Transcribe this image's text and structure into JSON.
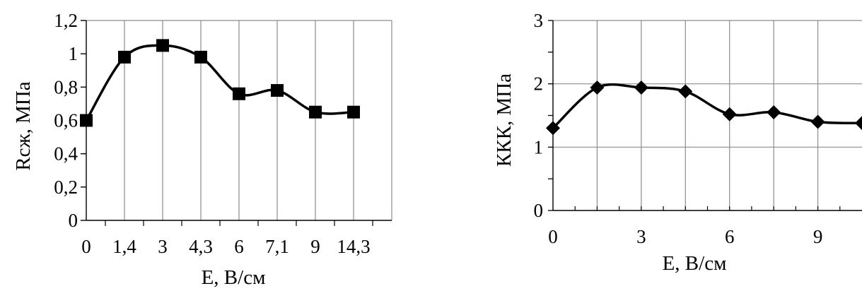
{
  "chart_data": [
    {
      "type": "line",
      "title": "",
      "xlabel": "Е, В/см",
      "ylabel": "Rсж, МПа",
      "categories": [
        "0",
        "1,4",
        "3",
        "4,3",
        "6",
        "7,1",
        "9",
        "14,3"
      ],
      "series": [
        {
          "values": [
            0.6,
            0.98,
            1.05,
            0.98,
            0.76,
            0.78,
            0.65,
            0.65
          ],
          "marker": "square"
        }
      ],
      "ylim": [
        0,
        1.2
      ],
      "yticks": [
        "0",
        "0,2",
        "0,4",
        "0,6",
        "0,8",
        "1",
        "1,2"
      ],
      "grid": "vertical",
      "legend": "none",
      "smoothed": true,
      "colors": {
        "line": "#000000",
        "grid": "#8c8c8c",
        "axis": "#000000"
      }
    },
    {
      "type": "line",
      "title": "",
      "xlabel": "Е, В/см",
      "ylabel": "ККК, МПа",
      "x": [
        0,
        1.5,
        3,
        4.5,
        6,
        7.5,
        9,
        10.5
      ],
      "series": [
        {
          "values": [
            1.3,
            1.94,
            1.94,
            1.88,
            1.52,
            1.55,
            1.4,
            1.38
          ],
          "marker": "diamond"
        }
      ],
      "xlim": [
        0,
        10.5
      ],
      "xticks": [
        "0",
        "3",
        "6",
        "9"
      ],
      "ylim": [
        0,
        3
      ],
      "yticks": [
        "0",
        "1",
        "2",
        "3"
      ],
      "grid": "both",
      "legend": "none",
      "smoothed": true,
      "colors": {
        "line": "#000000",
        "grid": "#8c8c8c",
        "axis": "#000000"
      }
    }
  ]
}
